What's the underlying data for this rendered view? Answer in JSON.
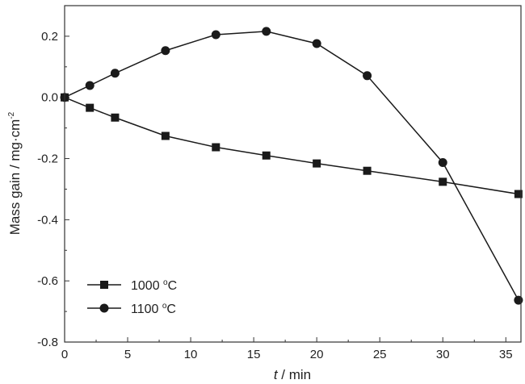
{
  "chart_data": {
    "type": "line",
    "xlabel_italic": "t",
    "xlabel_rest": " / min",
    "ylabel": "Mass gain / mg·cm",
    "ylabel_sup": "-2",
    "xlim": [
      0,
      36.2
    ],
    "ylim": [
      -0.8,
      0.3
    ],
    "xticks": [
      0,
      5,
      10,
      15,
      20,
      25,
      30,
      35
    ],
    "yticks": [
      0.2,
      0.0,
      -0.2,
      -0.4,
      -0.6,
      -0.8
    ],
    "ytick_labels": [
      "0.2",
      "0.0",
      "-0.2",
      "-0.4",
      "-0.6",
      "-0.8"
    ],
    "grid": false,
    "legend_position": "bottom-left",
    "series": [
      {
        "name": "1000 °C",
        "label_num": "1000 ",
        "label_unit": "C",
        "marker": "square",
        "color": "#1a1a1a",
        "x": [
          0,
          2,
          4,
          8,
          12,
          16,
          20,
          24,
          30,
          36
        ],
        "y": [
          0.0,
          -0.034,
          -0.066,
          -0.126,
          -0.163,
          -0.19,
          -0.216,
          -0.24,
          -0.276,
          -0.316
        ]
      },
      {
        "name": "1100 °C",
        "label_num": "1100 ",
        "label_unit": "C",
        "marker": "circle",
        "color": "#1a1a1a",
        "x": [
          0,
          2,
          4,
          8,
          12,
          16,
          20,
          24,
          30,
          36
        ],
        "y": [
          0.0,
          0.039,
          0.079,
          0.153,
          0.205,
          0.216,
          0.176,
          0.071,
          -0.213,
          -0.663
        ]
      }
    ]
  }
}
